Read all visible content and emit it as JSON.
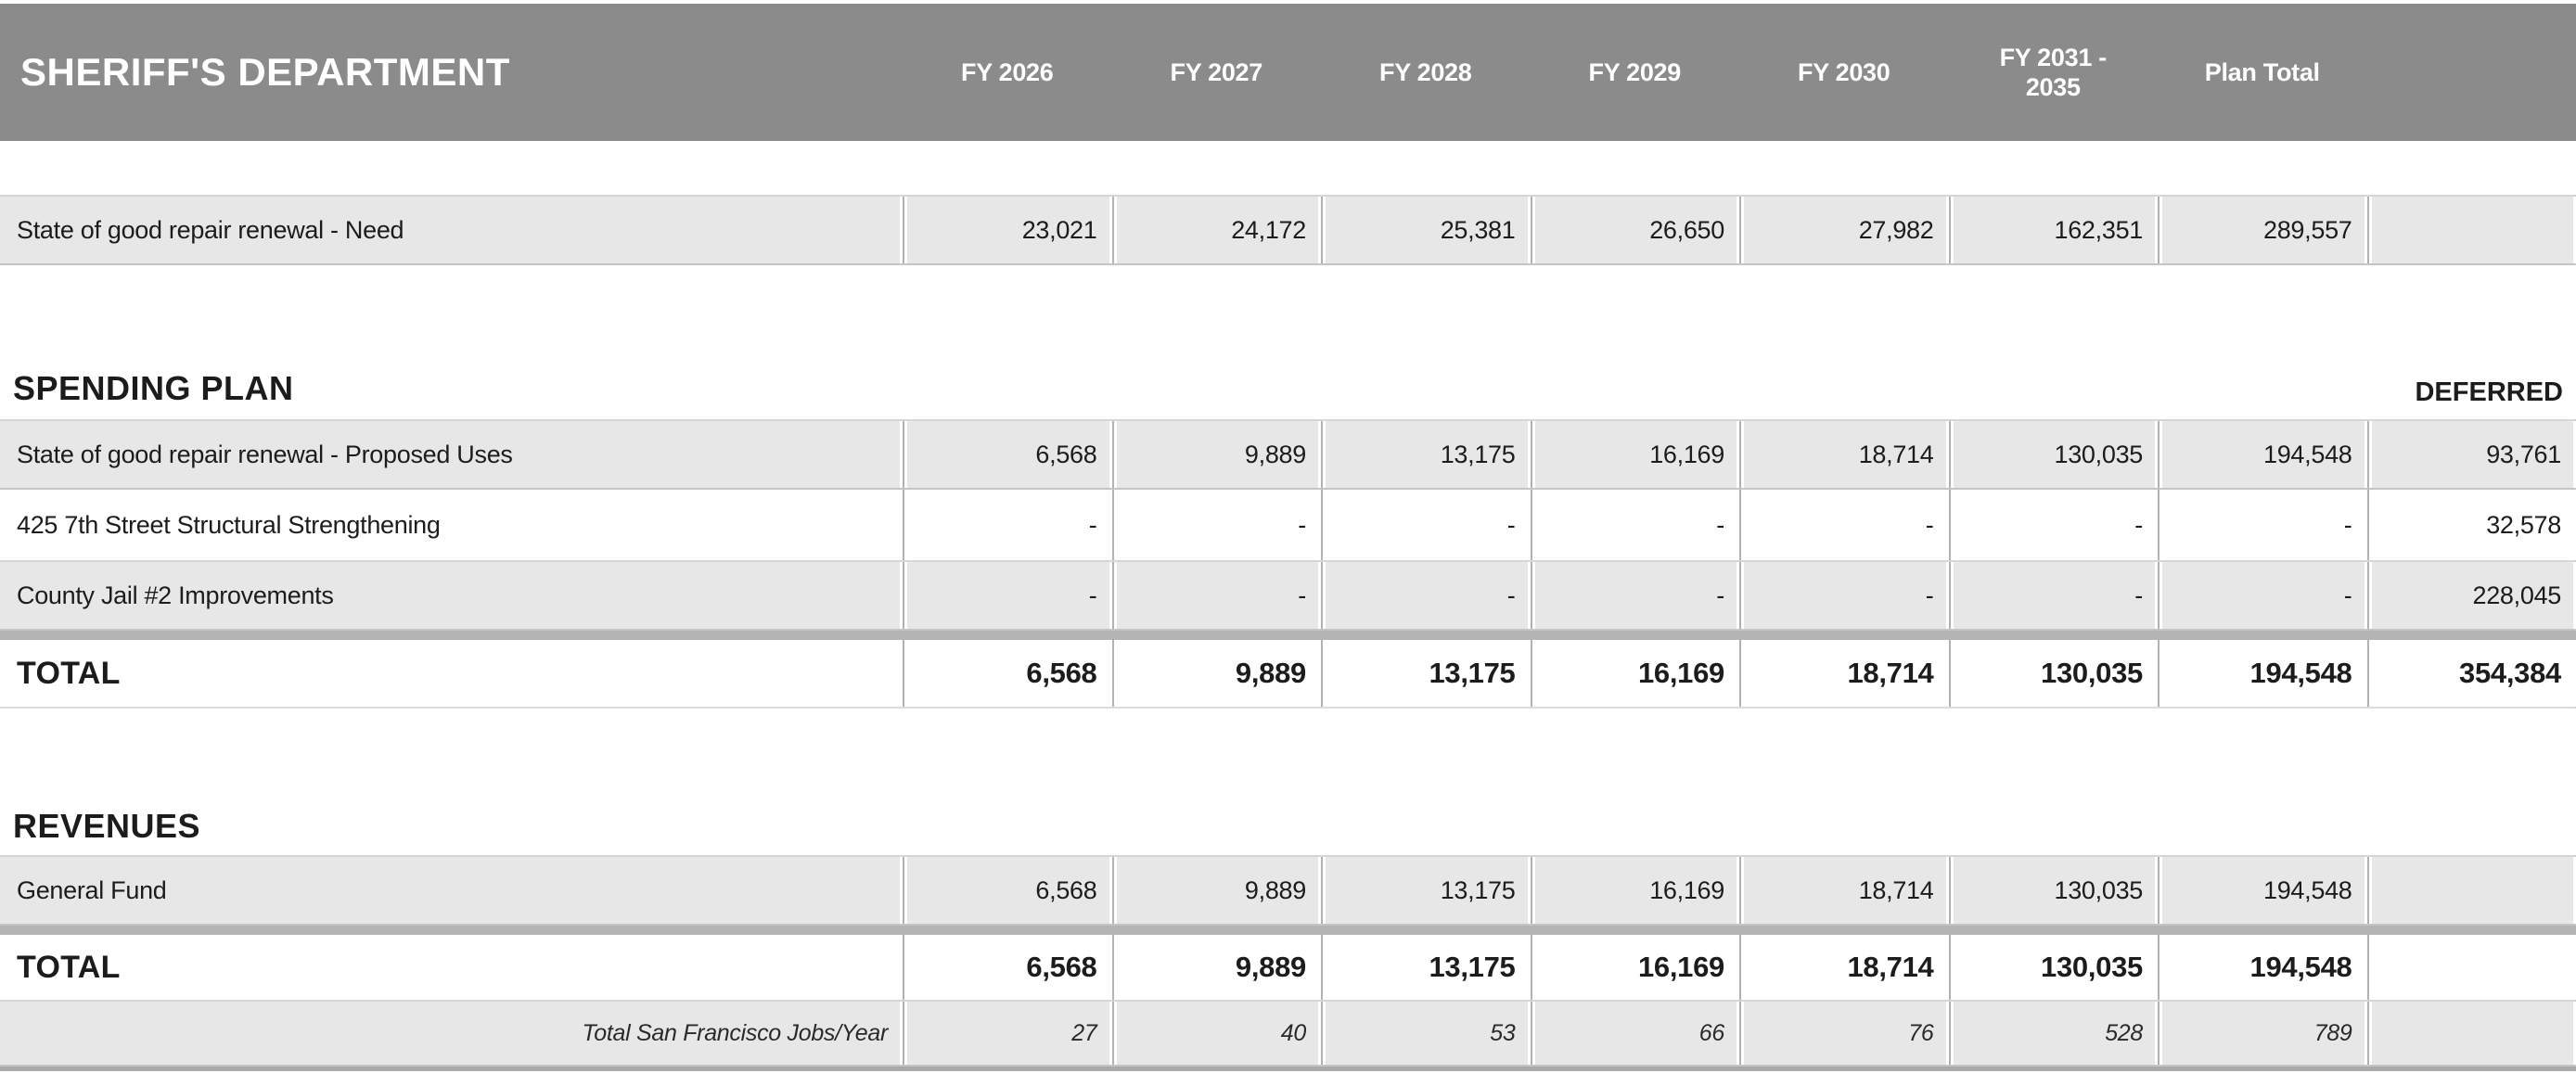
{
  "department_header": {
    "title": "SHERIFF'S DEPARTMENT",
    "columns": [
      "FY 2026",
      "FY 2027",
      "FY 2028",
      "FY 2029",
      "FY 2030",
      "FY 2031 - 2035",
      "Plan Total"
    ]
  },
  "need_table": {
    "rows": [
      {
        "label": "State of good repair renewal - Need",
        "values": [
          "23,021",
          "24,172",
          "25,381",
          "26,650",
          "27,982",
          "162,351",
          "289,557",
          ""
        ]
      }
    ]
  },
  "spending_plan": {
    "heading": "SPENDING PLAN",
    "deferred_column_heading": "DEFERRED",
    "rows": [
      {
        "label": "State of good repair renewal - Proposed Uses",
        "values": [
          "6,568",
          "9,889",
          "13,175",
          "16,169",
          "18,714",
          "130,035",
          "194,548",
          "93,761"
        ]
      },
      {
        "label": "425 7th Street Structural Strengthening",
        "values": [
          "-",
          "-",
          "-",
          "-",
          "-",
          "-",
          "-",
          "32,578"
        ]
      },
      {
        "label": "County Jail #2 Improvements",
        "values": [
          "-",
          "-",
          "-",
          "-",
          "-",
          "-",
          "-",
          "228,045"
        ]
      }
    ],
    "total_row": {
      "label": "TOTAL",
      "values": [
        "6,568",
        "9,889",
        "13,175",
        "16,169",
        "18,714",
        "130,035",
        "194,548",
        "354,384"
      ]
    }
  },
  "revenues": {
    "heading": "REVENUES",
    "rows": [
      {
        "label": "General Fund",
        "values": [
          "6,568",
          "9,889",
          "13,175",
          "16,169",
          "18,714",
          "130,035",
          "194,548",
          ""
        ]
      }
    ],
    "total_row": {
      "label": "TOTAL",
      "values": [
        "6,568",
        "9,889",
        "13,175",
        "16,169",
        "18,714",
        "130,035",
        "194,548",
        ""
      ]
    },
    "jobs_row": {
      "label": "Total San Francisco Jobs/Year",
      "values": [
        "27",
        "40",
        "53",
        "66",
        "76",
        "528",
        "789",
        ""
      ]
    }
  },
  "colors": {
    "header_background": "#8b8b8b",
    "header_text": "#ffffff",
    "row_shade": "#e7e7e7",
    "thick_separator": "#b4b4b4",
    "bottom_bar": "#a9a9a9",
    "body_text": "#1c1c1c"
  }
}
